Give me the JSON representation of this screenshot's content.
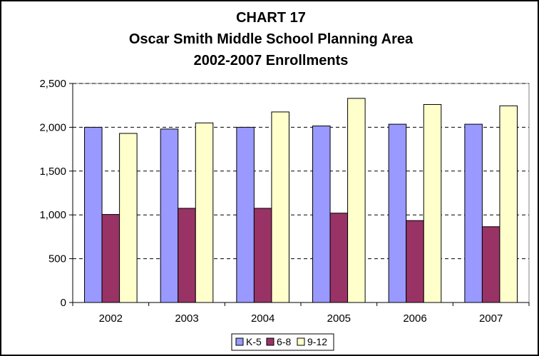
{
  "chart_data": {
    "type": "bar",
    "title_lines": [
      "CHART 17",
      "Oscar Smith Middle School Planning Area",
      "2002-2007 Enrollments"
    ],
    "categories": [
      "2002",
      "2003",
      "2004",
      "2005",
      "2006",
      "2007"
    ],
    "series": [
      {
        "name": "K-5",
        "color": "#9999ff",
        "values": [
          2000,
          1980,
          2000,
          2015,
          2035,
          2035
        ]
      },
      {
        "name": "6-8",
        "color": "#993366",
        "values": [
          1005,
          1075,
          1075,
          1020,
          935,
          865
        ]
      },
      {
        "name": "9-12",
        "color": "#ffffcc",
        "values": [
          1930,
          2050,
          2175,
          2330,
          2260,
          2245
        ]
      }
    ],
    "ylim": [
      0,
      2500
    ],
    "yticks": [
      0,
      500,
      1000,
      1500,
      2000,
      2500
    ],
    "ytick_labels": [
      "0",
      "500",
      "1,000",
      "1,500",
      "2,000",
      "2,500"
    ],
    "grid": true,
    "legend": "bottom",
    "plot_background": "#ffffff",
    "bar_edge_color": "#000000",
    "gridline_color": "#000000"
  }
}
